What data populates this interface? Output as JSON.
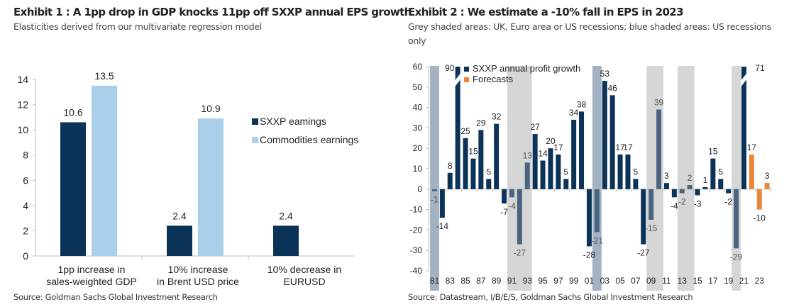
{
  "exhibit1": {
    "title": "Exhibit 1 : A 1pp drop in GDP knocks 11pp off SXXP annual EPS growth",
    "subtitle": "Elasticities derived from our multivariate regression model",
    "source": "Source: Goldman Sachs Global Investment Research"
  },
  "exhibit2": {
    "title": "Exhibit 2 : We estimate a -10% fall in EPS in 2023",
    "subtitle": "Grey shaded areas: UK, Euro area or US recessions; blue shaded areas: US recessions only",
    "source": "Source: Datastream, I/B/E/S, Goldman Sachs Global Investment Research"
  },
  "colors": {
    "navy": "#0b3358",
    "light_blue": "#a9cfea",
    "orange": "#e8873a",
    "grey_shade": "#d6d6d6",
    "blue_shade": "#a3b1c2",
    "shaded_bar": "#4a6480"
  },
  "chart_data": [
    {
      "type": "bar",
      "title": "Exhibit 1 : A 1pp drop in GDP knocks 11pp off SXXP annual EPS growth",
      "categories": [
        [
          "1pp increase in",
          "sales-weighted GDP"
        ],
        [
          "10% increase",
          "in Brent USD price"
        ],
        [
          "10% decrease in",
          "EURUSD"
        ]
      ],
      "series": [
        {
          "name": "SXXP eamings",
          "values": [
            10.6,
            2.4,
            2.4
          ]
        },
        {
          "name": "Commodities earnings",
          "values": [
            13.5,
            10.9,
            null
          ]
        }
      ],
      "labels": [
        [
          "10.6",
          "2.4",
          "2.4"
        ],
        [
          "13.5",
          "10.9",
          ""
        ]
      ],
      "ylim": [
        0,
        14
      ],
      "yticks": [
        0,
        2,
        4,
        6,
        8,
        10,
        12,
        14
      ],
      "legend": "right",
      "xlabel": "",
      "ylabel": ""
    },
    {
      "type": "bar",
      "title": "Exhibit 2 : We estimate a -10% fall in EPS in 2023",
      "years": [
        1981,
        1982,
        1983,
        1984,
        1985,
        1986,
        1987,
        1988,
        1989,
        1990,
        1991,
        1992,
        1993,
        1994,
        1995,
        1996,
        1997,
        1998,
        1999,
        2000,
        2001,
        2002,
        2003,
        2004,
        2005,
        2006,
        2007,
        2008,
        2009,
        2010,
        2011,
        2012,
        2013,
        2014,
        2015,
        2016,
        2017,
        2018,
        2019,
        2020,
        2021,
        2022,
        2023,
        2024
      ],
      "values": [
        -1,
        -14,
        8,
        90,
        25,
        15,
        29,
        5,
        32,
        -7,
        -4,
        -27,
        13,
        27,
        14,
        20,
        17,
        5,
        34,
        38,
        -28,
        -21,
        53,
        46,
        17,
        17,
        5,
        -27,
        -15,
        39,
        3,
        -4,
        -2,
        2,
        -3,
        1,
        15,
        5,
        -2,
        -29,
        71,
        17,
        -10,
        3
      ],
      "forecast_from": 2022,
      "axis_break_above": 60,
      "series": [
        {
          "name": "SXXP  annual profit growth"
        },
        {
          "name": "Forecasts"
        }
      ],
      "grey_shaded_years": [
        [
          1991,
          1993
        ],
        [
          2009,
          2010
        ],
        [
          2013,
          2014
        ],
        [
          2020,
          2020
        ]
      ],
      "blue_shaded_years": [
        [
          1981,
          1981
        ],
        [
          2002,
          2002
        ]
      ],
      "xticks": [
        "81",
        "83",
        "85",
        "87",
        "89",
        "91",
        "93",
        "95",
        "97",
        "99",
        "01",
        "03",
        "05",
        "07",
        "09",
        "11",
        "13",
        "15",
        "17",
        "19",
        "21",
        "23"
      ],
      "ylim": [
        -40,
        60
      ],
      "yticks": [
        -40,
        -30,
        -20,
        -10,
        0,
        10,
        20,
        30,
        40,
        50,
        60
      ],
      "legend": "top-left",
      "xlabel": "",
      "ylabel": ""
    }
  ]
}
